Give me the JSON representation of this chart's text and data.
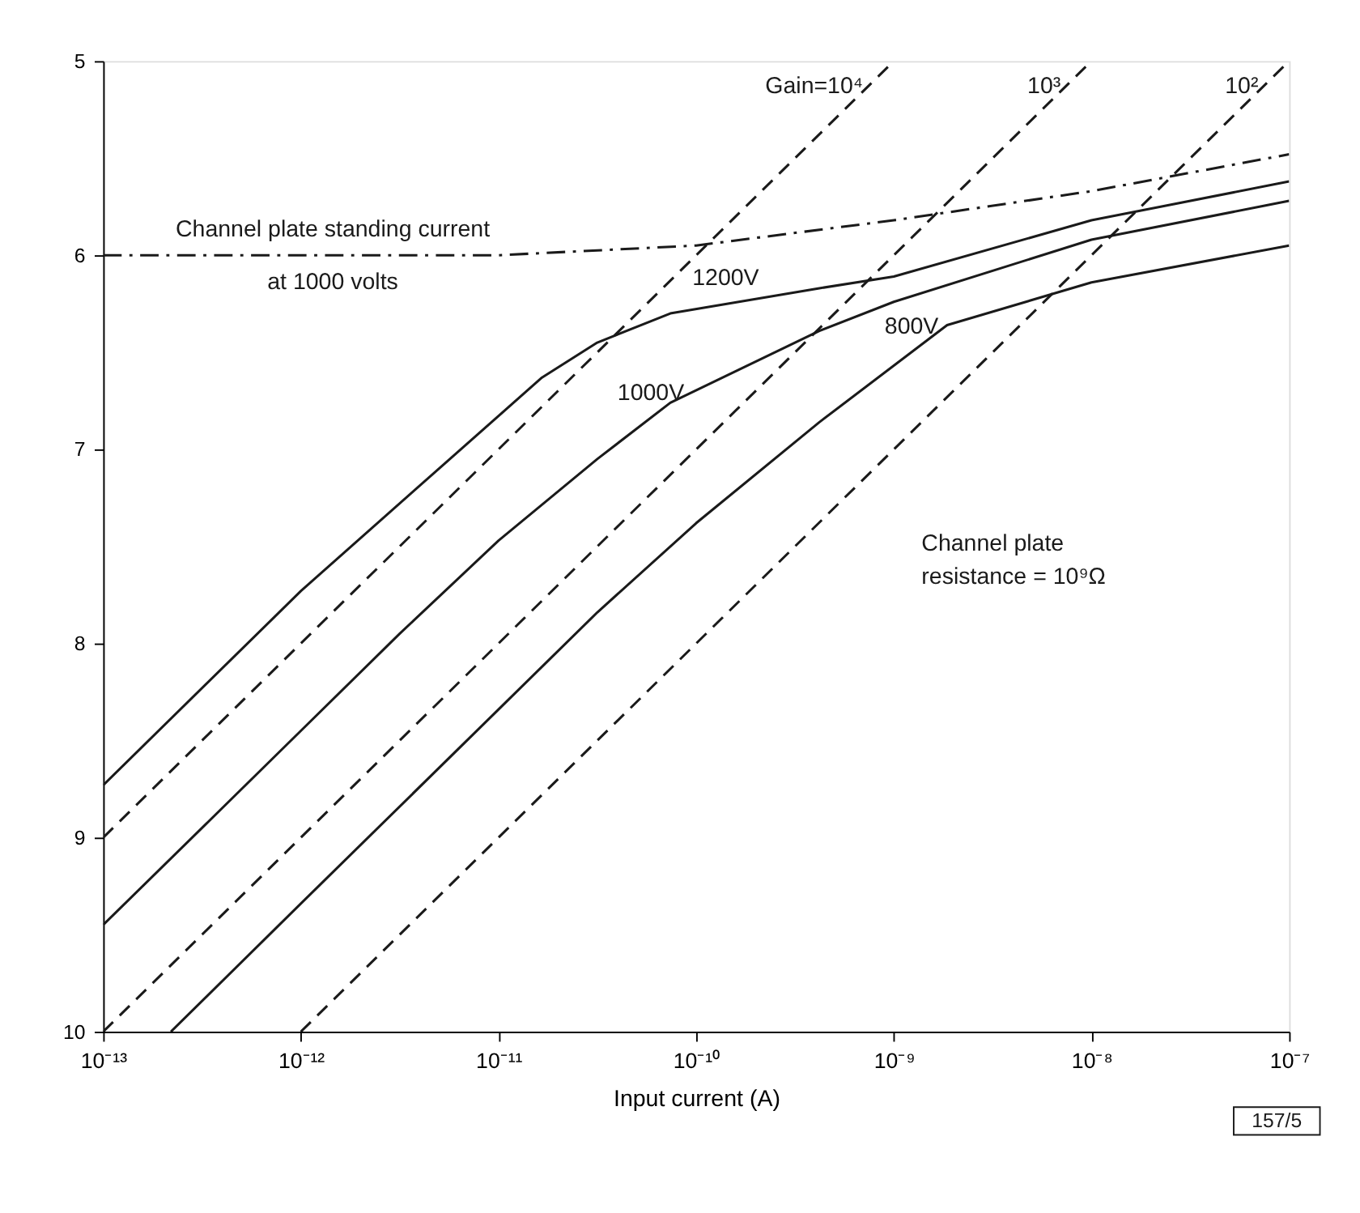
{
  "chart_data": {
    "type": "line",
    "xlabel": "Input current (A)",
    "log": "x",
    "xlim": [
      1e-13,
      1e-07
    ],
    "xticks": [
      {
        "value": 1e-13,
        "label": "10⁻¹³"
      },
      {
        "value": 1e-12,
        "label": "10⁻¹²"
      },
      {
        "value": 1e-11,
        "label": "10⁻¹¹"
      },
      {
        "value": 1e-10,
        "label": "10⁻¹⁰"
      },
      {
        "value": 1e-09,
        "label": "10⁻⁹"
      },
      {
        "value": 1e-08,
        "label": "10⁻⁸"
      },
      {
        "value": 1e-07,
        "label": "10⁻⁷"
      }
    ],
    "ylim": [
      10,
      5
    ],
    "yticks": [
      5,
      6,
      7,
      8,
      9,
      10
    ],
    "grid": false,
    "series": [
      {
        "color": "#1a1a1a",
        "line_style": "solid",
        "x": [
          1e-13,
          1e-12,
          5.25e-12,
          1.66e-11,
          3.16e-11,
          7.4e-11,
          4.2e-10,
          1e-09,
          1e-08,
          1e-07
        ],
        "values": [
          8.73,
          7.73,
          7.08,
          6.63,
          6.45,
          6.3,
          6.17,
          6.11,
          5.82,
          5.62
        ]
      },
      {
        "color": "#1a1a1a",
        "line_style": "solid",
        "x": [
          1e-13,
          1e-12,
          3.16e-12,
          1e-11,
          3.16e-11,
          7.4e-11,
          4.2e-10,
          1e-09,
          1e-08,
          1e-07
        ],
        "values": [
          9.45,
          8.45,
          7.95,
          7.47,
          7.05,
          6.76,
          6.39,
          6.24,
          5.92,
          5.72
        ]
      },
      {
        "color": "#1a1a1a",
        "line_style": "solid",
        "x": [
          2.2e-13,
          1e-12,
          1e-11,
          3.16e-11,
          1e-10,
          4.2e-10,
          1.86e-09,
          1e-08,
          1e-07
        ],
        "values": [
          10,
          9.34,
          8.34,
          7.84,
          7.38,
          6.86,
          6.36,
          6.14,
          5.95
        ]
      },
      {
        "name": "Gain=10⁴",
        "color": "#1a1a1a",
        "line_style": "dashed",
        "x": [
          1e-13,
          1e-09
        ],
        "values": [
          9,
          5
        ]
      },
      {
        "name": "10³",
        "color": "#1a1a1a",
        "line_style": "dashed",
        "x": [
          1e-13,
          1e-08
        ],
        "values": [
          10,
          5
        ]
      },
      {
        "name": "10²",
        "color": "#1a1a1a",
        "line_style": "dashed",
        "x": [
          1e-12,
          1e-07
        ],
        "values": [
          10,
          5
        ]
      },
      {
        "color": "#1a1a1a",
        "line_style": "dashdot",
        "x": [
          1e-13,
          1e-11,
          1e-10,
          1e-09,
          1e-08,
          1e-07
        ],
        "values": [
          6.0,
          6.0,
          5.95,
          5.82,
          5.67,
          5.48
        ]
      }
    ],
    "annotations": [
      {
        "text": "1200V",
        "x": 1.41e-10,
        "y": 6.25
      },
      {
        "text": "1000V",
        "x": 5.9e-11,
        "y": 6.84
      },
      {
        "text": "800V",
        "x": 1.23e-09,
        "y": 6.5
      },
      {
        "text": "Channel plate standing current\nat 1000 volts",
        "x": 1.45e-12,
        "y": 6.0
      },
      "Channel plate\nresistance = 10⁹Ω",
      "157/5"
    ]
  }
}
